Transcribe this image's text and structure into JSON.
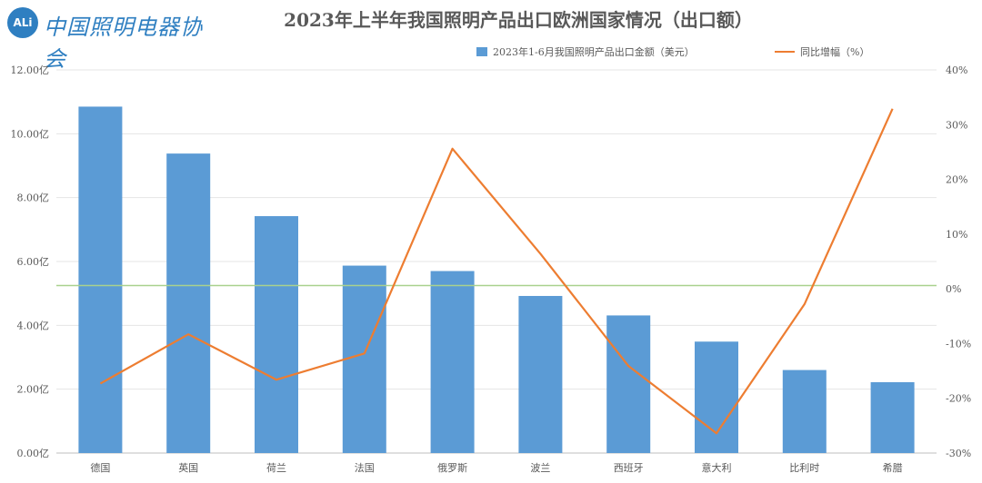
{
  "header": {
    "logo_badge": "ALi",
    "logo_text": "中国照明电器协会",
    "title": "2023年上半年我国照明产品出口欧洲国家情况（出口额）"
  },
  "chart_data": {
    "type": "bar+line",
    "title": "2023年上半年我国照明产品出口欧洲国家情况（出口额）",
    "categories": [
      "德国",
      "英国",
      "荷兰",
      "法国",
      "俄罗斯",
      "波兰",
      "西班牙",
      "意大利",
      "比利时",
      "希腊"
    ],
    "series": [
      {
        "name": "2023年1-6月我国照明产品出口金额（美元）",
        "type": "bar",
        "axis": "left",
        "color": "#5b9bd5",
        "values": [
          10.85,
          9.38,
          7.42,
          5.87,
          5.7,
          4.92,
          4.31,
          3.49,
          2.6,
          2.22
        ]
      },
      {
        "name": "同比增幅（%）",
        "type": "line",
        "axis": "right",
        "color": "#ed7d31",
        "values": [
          -17.3,
          -8.3,
          -16.6,
          -11.8,
          25.6,
          6.4,
          -14.1,
          -26.4,
          -2.8,
          32.9
        ]
      }
    ],
    "y_left": {
      "min": 0,
      "max": 12,
      "step": 2,
      "tick_labels": [
        "0.00亿",
        "2.00亿",
        "4.00亿",
        "6.00亿",
        "8.00亿",
        "10.00亿",
        "12.00亿"
      ]
    },
    "y_right": {
      "min": -30,
      "max": 40,
      "step": 10,
      "tick_labels": [
        "-30%",
        "-20%",
        "-10%",
        "0%",
        "10%",
        "20%",
        "30%",
        "40%"
      ]
    },
    "reference_line": {
      "axis": "right",
      "value": 0.6,
      "color": "#a9d18e"
    },
    "grid": true,
    "legend": "top-center"
  }
}
